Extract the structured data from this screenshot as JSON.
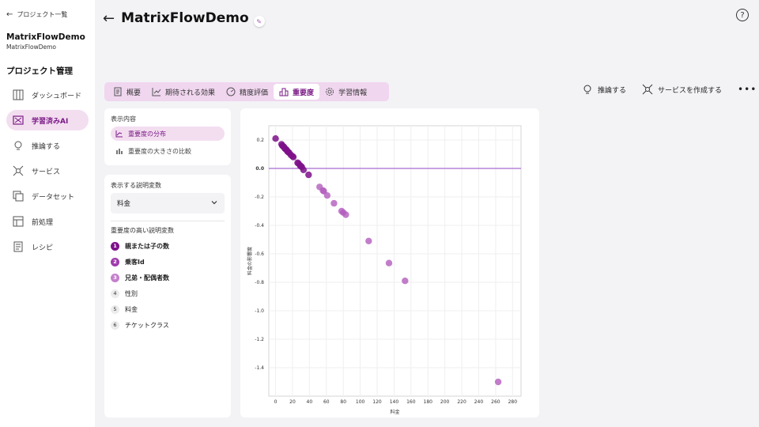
{
  "sidebar": {
    "back_label": "プロジェクト一覧",
    "project_name": "MatrixFlowDemo",
    "project_sub": "MatrixFlowDemo",
    "section_title": "プロジェクト管理",
    "items": [
      {
        "label": "ダッシュボード",
        "icon": "dashboard-icon"
      },
      {
        "label": "学習済みAI",
        "icon": "ai-model-icon",
        "active": true
      },
      {
        "label": "推論する",
        "icon": "lightbulb-icon"
      },
      {
        "label": "サービス",
        "icon": "service-icon"
      },
      {
        "label": "データセット",
        "icon": "dataset-icon"
      },
      {
        "label": "前処理",
        "icon": "preprocess-icon"
      },
      {
        "label": "レシピ",
        "icon": "recipe-icon"
      }
    ]
  },
  "header": {
    "title": "MatrixFlowDemo"
  },
  "tabs": [
    {
      "label": "概要",
      "icon": "document-icon"
    },
    {
      "label": "期待される効果",
      "icon": "trend-icon"
    },
    {
      "label": "精度評価",
      "icon": "gauge-icon"
    },
    {
      "label": "重要度",
      "icon": "importance-icon",
      "active": true
    },
    {
      "label": "学習情報",
      "icon": "gear-icon"
    }
  ],
  "actions": {
    "infer_label": "推論する",
    "create_service_label": "サービスを作成する"
  },
  "display": {
    "label": "表示内容",
    "options": [
      "重要度の分布",
      "重要度の大きさの比較"
    ]
  },
  "variable_select": {
    "label": "表示する説明変数",
    "value": "料金"
  },
  "ranking": {
    "label": "重要度の高い説明変数",
    "items": [
      "親または子の数",
      "乗客Id",
      "兄弟・配偶者数",
      "性別",
      "料金",
      "チケットクラス"
    ]
  },
  "chart_data": {
    "type": "scatter",
    "xlabel": "料金",
    "ylabel": "料金の影響度",
    "xlim": [
      -8,
      290
    ],
    "ylim": [
      -1.6,
      0.3
    ],
    "xticks": [
      0,
      20,
      40,
      60,
      80,
      100,
      120,
      140,
      160,
      180,
      200,
      220,
      240,
      260,
      280
    ],
    "yticks": [
      0.2,
      0.0,
      -0.2,
      -0.4,
      -0.6,
      -0.8,
      -1.0,
      -1.2,
      -1.4
    ],
    "hline": 0.0,
    "colors": {
      "dense": "#7e1189",
      "light": "#b35cbd",
      "hline": "#a86bd1"
    },
    "points": [
      {
        "x": 0,
        "y": 0.21
      },
      {
        "x": 7,
        "y": 0.17
      },
      {
        "x": 8,
        "y": 0.16
      },
      {
        "x": 9,
        "y": 0.155
      },
      {
        "x": 10,
        "y": 0.15
      },
      {
        "x": 11,
        "y": 0.14
      },
      {
        "x": 12,
        "y": 0.135
      },
      {
        "x": 13,
        "y": 0.13
      },
      {
        "x": 14,
        "y": 0.12
      },
      {
        "x": 15,
        "y": 0.115
      },
      {
        "x": 16,
        "y": 0.11
      },
      {
        "x": 18,
        "y": 0.095
      },
      {
        "x": 20,
        "y": 0.085
      },
      {
        "x": 21,
        "y": 0.08
      },
      {
        "x": 26,
        "y": 0.04
      },
      {
        "x": 27,
        "y": 0.035
      },
      {
        "x": 29,
        "y": 0.02
      },
      {
        "x": 30,
        "y": 0.015
      },
      {
        "x": 31,
        "y": 0.01
      },
      {
        "x": 33,
        "y": -0.01
      },
      {
        "x": 39,
        "y": -0.045
      },
      {
        "x": 52,
        "y": -0.13
      },
      {
        "x": 56,
        "y": -0.155
      },
      {
        "x": 57,
        "y": -0.16
      },
      {
        "x": 61,
        "y": -0.19
      },
      {
        "x": 69,
        "y": -0.245
      },
      {
        "x": 78,
        "y": -0.3
      },
      {
        "x": 80,
        "y": -0.31
      },
      {
        "x": 83,
        "y": -0.325
      },
      {
        "x": 110,
        "y": -0.51
      },
      {
        "x": 134,
        "y": -0.665
      },
      {
        "x": 153,
        "y": -0.79
      },
      {
        "x": 263,
        "y": -1.5
      }
    ]
  }
}
